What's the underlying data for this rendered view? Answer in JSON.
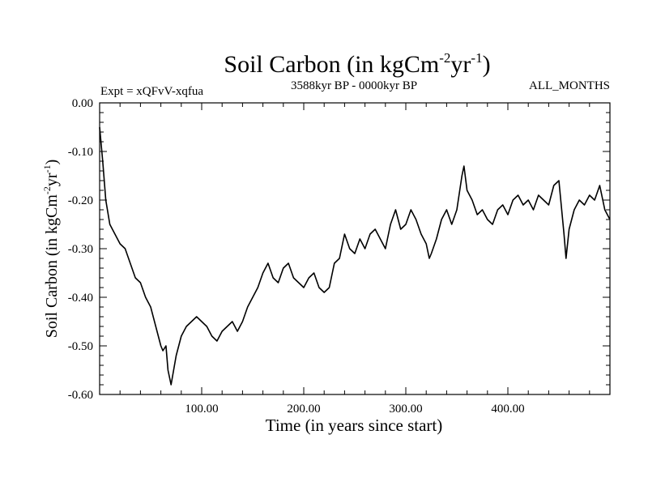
{
  "chart_data": {
    "type": "line",
    "title": {
      "main": "Soil Carbon (in kgCm",
      "sup1": "-2",
      "mid": "yr",
      "sup2": "-1",
      "close": ")"
    },
    "subtitle_left": "Expt = xQFvV-xqfua",
    "subtitle_center": "3588kyr BP - 0000kyr BP",
    "subtitle_right": "ALL_MONTHS",
    "xlabel": "Time (in years since start)",
    "ylabel": {
      "main": "Soil Carbon (in kgCm",
      "sup1": "-2",
      "mid": "yr",
      "sup2": "-1",
      "close": ")"
    },
    "xlim": [
      0,
      500
    ],
    "ylim": [
      -0.6,
      0.0
    ],
    "x_ticks": [
      {
        "value": 100,
        "label": "100.00"
      },
      {
        "value": 200,
        "label": "200.00"
      },
      {
        "value": 300,
        "label": "300.00"
      },
      {
        "value": 400,
        "label": "400.00"
      }
    ],
    "y_ticks": [
      {
        "value": 0.0,
        "label": "0.00"
      },
      {
        "value": -0.1,
        "label": "-0.10"
      },
      {
        "value": -0.2,
        "label": "-0.20"
      },
      {
        "value": -0.3,
        "label": "-0.30"
      },
      {
        "value": -0.4,
        "label": "-0.40"
      },
      {
        "value": -0.5,
        "label": "-0.50"
      },
      {
        "value": -0.6,
        "label": "-0.60"
      }
    ],
    "series": [
      {
        "name": "Soil Carbon",
        "color": "#000000",
        "x": [
          0,
          3,
          6,
          10,
          15,
          20,
          25,
          30,
          35,
          40,
          45,
          50,
          55,
          60,
          62,
          65,
          67,
          70,
          75,
          80,
          85,
          90,
          95,
          100,
          105,
          110,
          115,
          120,
          125,
          130,
          135,
          140,
          145,
          150,
          155,
          160,
          165,
          170,
          175,
          180,
          185,
          190,
          195,
          200,
          205,
          210,
          215,
          220,
          225,
          230,
          235,
          240,
          245,
          250,
          255,
          260,
          265,
          270,
          275,
          280,
          285,
          290,
          295,
          300,
          305,
          310,
          315,
          320,
          323,
          325,
          330,
          335,
          340,
          345,
          350,
          355,
          357,
          360,
          365,
          370,
          375,
          380,
          385,
          390,
          395,
          400,
          405,
          410,
          415,
          420,
          425,
          430,
          435,
          440,
          445,
          450,
          455,
          457,
          460,
          465,
          470,
          475,
          480,
          485,
          490,
          495,
          500
        ],
        "values": [
          -0.05,
          -0.12,
          -0.2,
          -0.25,
          -0.27,
          -0.29,
          -0.3,
          -0.33,
          -0.36,
          -0.37,
          -0.4,
          -0.42,
          -0.46,
          -0.5,
          -0.51,
          -0.5,
          -0.55,
          -0.58,
          -0.52,
          -0.48,
          -0.46,
          -0.45,
          -0.44,
          -0.45,
          -0.46,
          -0.48,
          -0.49,
          -0.47,
          -0.46,
          -0.45,
          -0.47,
          -0.45,
          -0.42,
          -0.4,
          -0.38,
          -0.35,
          -0.33,
          -0.36,
          -0.37,
          -0.34,
          -0.33,
          -0.36,
          -0.37,
          -0.38,
          -0.36,
          -0.35,
          -0.38,
          -0.39,
          -0.38,
          -0.33,
          -0.32,
          -0.27,
          -0.3,
          -0.31,
          -0.28,
          -0.3,
          -0.27,
          -0.26,
          -0.28,
          -0.3,
          -0.25,
          -0.22,
          -0.26,
          -0.25,
          -0.22,
          -0.24,
          -0.27,
          -0.29,
          -0.32,
          -0.31,
          -0.28,
          -0.24,
          -0.22,
          -0.25,
          -0.22,
          -0.15,
          -0.13,
          -0.18,
          -0.2,
          -0.23,
          -0.22,
          -0.24,
          -0.25,
          -0.22,
          -0.21,
          -0.23,
          -0.2,
          -0.19,
          -0.21,
          -0.2,
          -0.22,
          -0.19,
          -0.2,
          -0.21,
          -0.17,
          -0.16,
          -0.27,
          -0.32,
          -0.26,
          -0.22,
          -0.2,
          -0.21,
          -0.19,
          -0.2,
          -0.17,
          -0.22,
          -0.24
        ]
      }
    ]
  }
}
